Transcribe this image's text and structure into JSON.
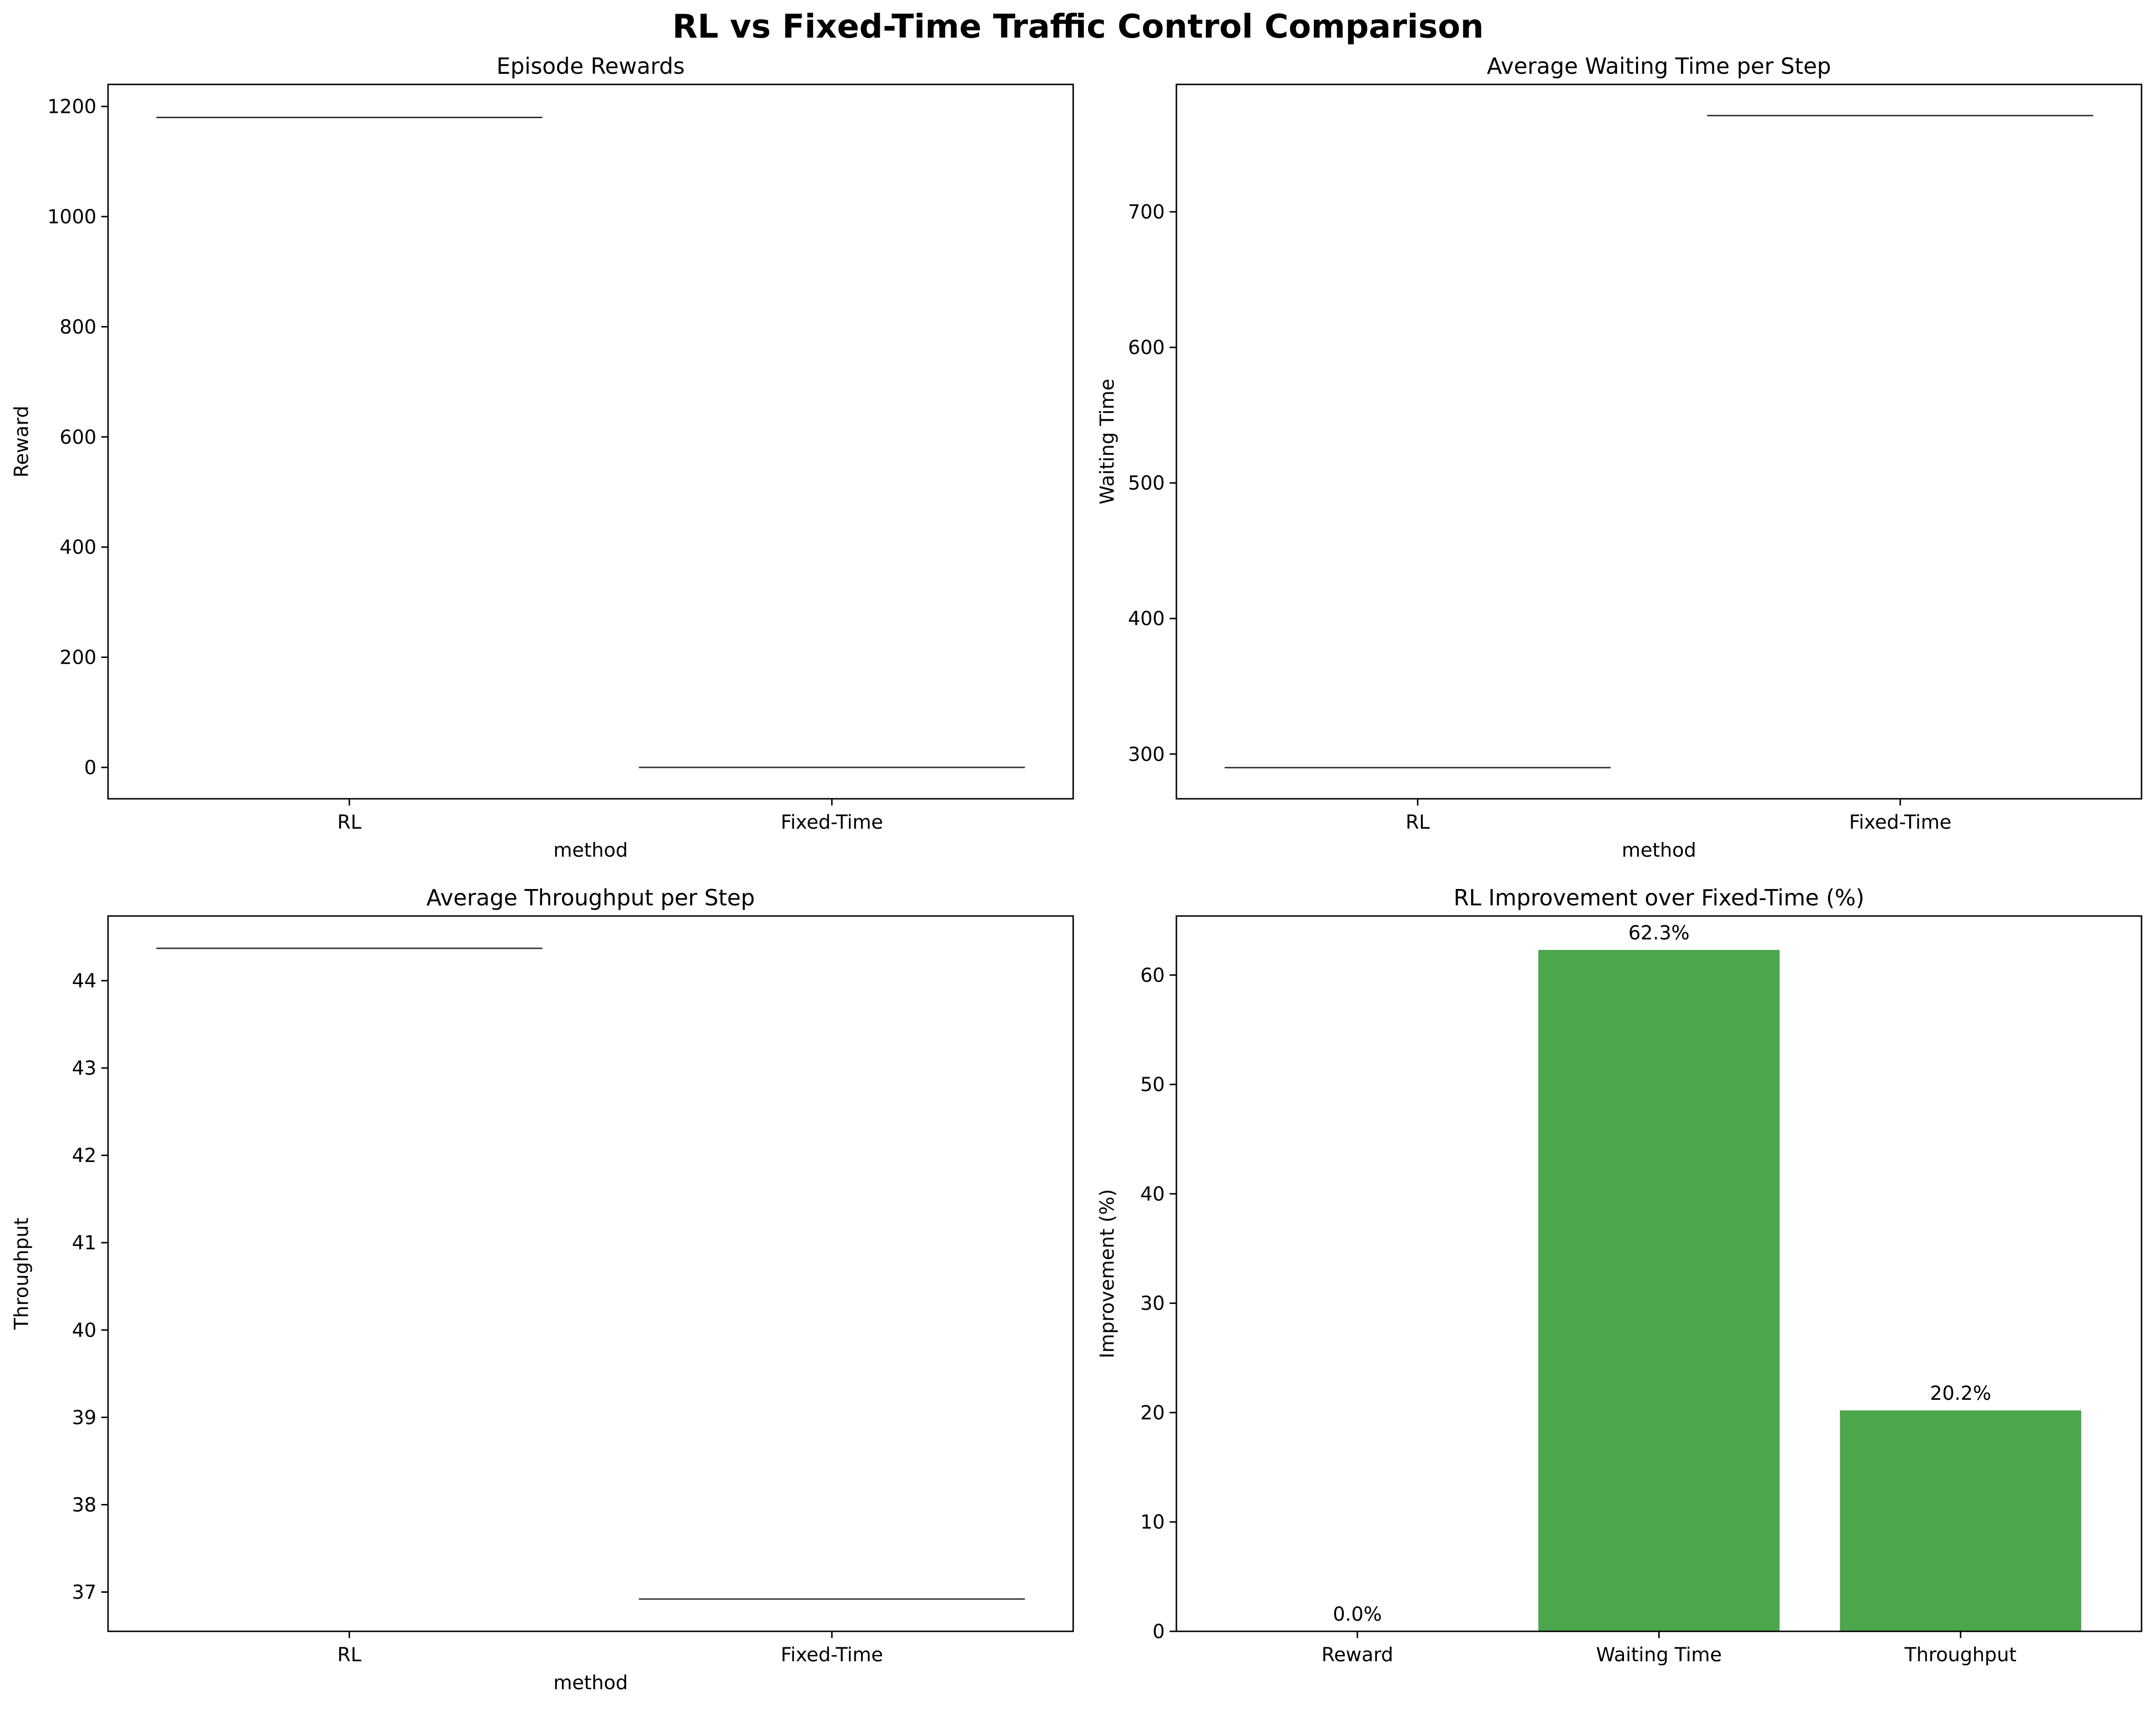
{
  "title": "RL vs Fixed-Time Traffic Control Comparison",
  "colors": {
    "bar": "#4ca64c",
    "line": "#333333",
    "axis": "#000000"
  },
  "chart_data": [
    {
      "type": "box",
      "title": "Episode Rewards",
      "xlabel": "method",
      "ylabel": "Reward",
      "categories": [
        "RL",
        "Fixed-Time"
      ],
      "values": [
        1180,
        0
      ],
      "ylim": [
        -57,
        1240
      ],
      "yticks": [
        0,
        200,
        400,
        600,
        800,
        1000,
        1200
      ]
    },
    {
      "type": "box",
      "title": "Average Waiting Time per Step",
      "xlabel": "method",
      "ylabel": "Waiting Time",
      "categories": [
        "RL",
        "Fixed-Time"
      ],
      "values": [
        290,
        771
      ],
      "ylim": [
        267,
        794
      ],
      "yticks": [
        300,
        400,
        500,
        600,
        700
      ]
    },
    {
      "type": "box",
      "title": "Average Throughput per Step",
      "xlabel": "method",
      "ylabel": "Throughput",
      "categories": [
        "RL",
        "Fixed-Time"
      ],
      "values": [
        44.37,
        36.92
      ],
      "ylim": [
        36.55,
        44.74
      ],
      "yticks": [
        37,
        38,
        39,
        40,
        41,
        42,
        43,
        44
      ]
    },
    {
      "type": "bar",
      "title": "RL Improvement over Fixed-Time (%)",
      "xlabel": "",
      "ylabel": "Improvement (%)",
      "categories": [
        "Reward",
        "Waiting Time",
        "Throughput"
      ],
      "values": [
        0.0,
        62.3,
        20.2
      ],
      "labels": [
        "0.0%",
        "62.3%",
        "20.2%"
      ],
      "ylim": [
        0,
        65.4
      ],
      "yticks": [
        0,
        10,
        20,
        30,
        40,
        50,
        60
      ]
    }
  ]
}
